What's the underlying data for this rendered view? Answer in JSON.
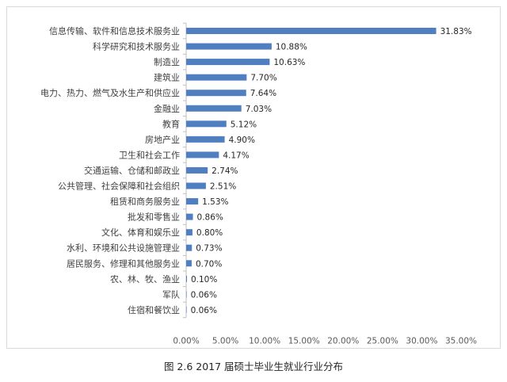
{
  "caption": "图 2.6  2017 届硕士毕业生就业行业分布",
  "chart_data": {
    "type": "bar",
    "orientation": "horizontal",
    "bar_color": "#4f7ec1",
    "categories": [
      "信息传输、软件和信息技术服务业",
      "科学研究和技术服务业",
      "制造业",
      "建筑业",
      "电力、热力、燃气及水生产和供应业",
      "金融业",
      "教育",
      "房地产业",
      "卫生和社会工作",
      "交通运输、仓储和邮政业",
      "公共管理、社会保障和社会组织",
      "租赁和商务服务业",
      "批发和零售业",
      "文化、体育和娱乐业",
      "水利、环境和公共设施管理业",
      "居民服务、修理和其他服务业",
      "农、林、牧、渔业",
      "军队",
      "住宿和餐饮业"
    ],
    "values": [
      31.83,
      10.88,
      10.63,
      7.7,
      7.64,
      7.03,
      5.12,
      4.9,
      4.17,
      2.74,
      2.51,
      1.53,
      0.86,
      0.8,
      0.73,
      0.7,
      0.1,
      0.06,
      0.06
    ],
    "value_labels": [
      "31.83%",
      "10.88%",
      "10.63%",
      "7.70%",
      "7.64%",
      "7.03%",
      "5.12%",
      "4.90%",
      "4.17%",
      "2.74%",
      "2.51%",
      "1.53%",
      "0.86%",
      "0.80%",
      "0.73%",
      "0.70%",
      "0.10%",
      "0.06%",
      "0.06%"
    ],
    "xlim": [
      0,
      35
    ],
    "x_ticks": [
      0,
      5,
      10,
      15,
      20,
      25,
      30,
      35
    ],
    "x_tick_labels": [
      "0.00%",
      "5.00%",
      "10.00%",
      "15.00%",
      "20.00%",
      "25.00%",
      "30.00%",
      "35.00%"
    ],
    "grid": false,
    "legend": "none"
  }
}
